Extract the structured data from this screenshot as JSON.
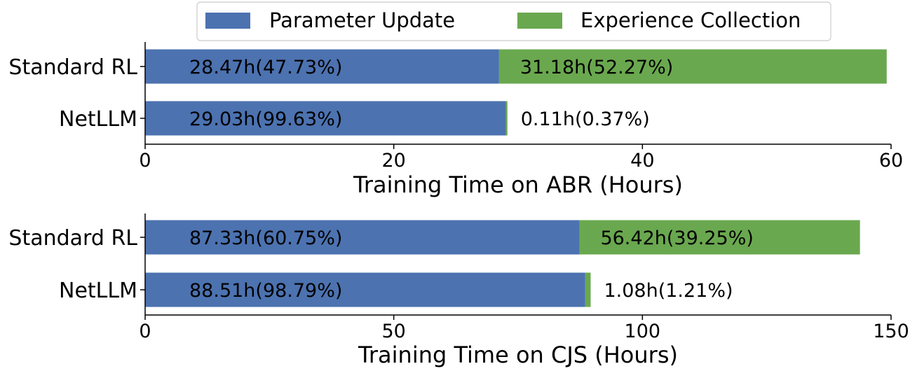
{
  "legend": [
    {
      "label": "Parameter Update",
      "color": "#4c72b0"
    },
    {
      "label": "Experience Collection",
      "color": "#6aa84f"
    }
  ],
  "chart_data": [
    {
      "type": "bar",
      "orientation": "horizontal",
      "stacked": true,
      "categories": [
        "Standard RL",
        "NetLLM"
      ],
      "series": [
        {
          "name": "Parameter Update",
          "values": [
            28.47,
            29.03
          ],
          "labels": [
            "28.47h(47.73%)",
            "29.03h(99.63%)"
          ]
        },
        {
          "name": "Experience Collection",
          "values": [
            31.18,
            0.11
          ],
          "labels": [
            "31.18h(52.27%)",
            "0.11h(0.37%)"
          ]
        }
      ],
      "xlabel": "Training Time on ABR (Hours)",
      "xlim": [
        0,
        60
      ],
      "xticks": [
        0,
        20,
        40,
        60
      ],
      "grid": false,
      "legend": "top-center"
    },
    {
      "type": "bar",
      "orientation": "horizontal",
      "stacked": true,
      "categories": [
        "Standard RL",
        "NetLLM"
      ],
      "series": [
        {
          "name": "Parameter Update",
          "values": [
            87.33,
            88.51
          ],
          "labels": [
            "87.33h(60.75%)",
            "88.51h(98.79%)"
          ]
        },
        {
          "name": "Experience Collection",
          "values": [
            56.42,
            1.08
          ],
          "labels": [
            "56.42h(39.25%)",
            "1.08h(1.21%)"
          ]
        }
      ],
      "xlabel": "Training Time on CJS (Hours)",
      "xlim": [
        0,
        150
      ],
      "xticks": [
        0,
        50,
        100,
        150
      ],
      "grid": false,
      "legend": "top-center"
    }
  ]
}
